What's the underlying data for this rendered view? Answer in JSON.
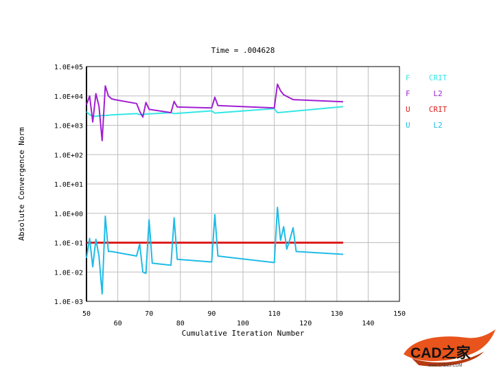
{
  "chart_data": {
    "type": "line",
    "title": "Time = .004628",
    "xlabel": "Cumulative Iteration Number",
    "ylabel": "Absolute Convergence Norm",
    "xlim": [
      50,
      150
    ],
    "ylim_log10": [
      -3,
      5
    ],
    "yscale": "log",
    "grid": true,
    "legend_position": "right",
    "x_ticks": [
      50,
      60,
      70,
      80,
      90,
      100,
      110,
      120,
      130,
      140,
      150
    ],
    "y_tick_labels": [
      "1.0E+05",
      "1.0E+04",
      "1.0E+03",
      "1.0E+02",
      "1.0E+01",
      "1.0E+00",
      "1.0E-01",
      "1.0E-02",
      "1.0E-03"
    ],
    "y_tick_values": [
      100000.0,
      10000.0,
      1000.0,
      100.0,
      10.0,
      1.0,
      0.1,
      0.01,
      0.001
    ],
    "legend": [
      {
        "left": "F",
        "right": "CRIT",
        "color": "#33e6e6"
      },
      {
        "left": "F",
        "right": "L2",
        "color": "#a01ed2"
      },
      {
        "left": "U",
        "right": "CRIT",
        "color": "#dd1e1e"
      },
      {
        "left": "U",
        "right": "L2",
        "color": "#1ebbe6"
      }
    ],
    "series": [
      {
        "name": "F CRIT",
        "color": "#33e6e6",
        "x": [
          50,
          51,
          52,
          53,
          54,
          55,
          56,
          57,
          58,
          66,
          67,
          68,
          69,
          70,
          77,
          78,
          79,
          90,
          91,
          92,
          110,
          111,
          112,
          132
        ],
        "y": [
          2900,
          2300,
          2000,
          2050,
          2100,
          2150,
          2150,
          2200,
          2250,
          2500,
          2300,
          2350,
          2400,
          2450,
          2700,
          2500,
          2550,
          3100,
          2600,
          2650,
          3700,
          2700,
          2750,
          4300
        ]
      },
      {
        "name": "F L2",
        "color": "#a01ed2",
        "x": [
          50,
          51,
          52,
          53,
          54,
          55,
          56,
          57,
          58,
          59,
          66,
          67,
          68,
          69,
          70,
          77,
          78,
          79,
          90,
          91,
          92,
          110,
          111,
          112,
          113,
          116,
          132
        ],
        "y": [
          5000,
          10000,
          1300,
          12000,
          4500,
          300,
          22000,
          10000,
          8000,
          7500,
          5500,
          3000,
          1900,
          6000,
          3500,
          2700,
          6500,
          4200,
          3900,
          9000,
          4700,
          3900,
          25000,
          15000,
          11000,
          7500,
          6300
        ]
      },
      {
        "name": "U CRIT",
        "color": "#dd1e1e",
        "x": [
          50,
          132
        ],
        "y": [
          0.1,
          0.1
        ]
      },
      {
        "name": "U L2",
        "color": "#1ebbe6",
        "x": [
          50,
          51,
          52,
          53,
          54,
          55,
          56,
          57,
          58,
          66,
          67,
          68,
          69,
          70,
          71,
          77,
          78,
          79,
          90,
          91,
          92,
          110,
          111,
          112,
          113,
          114,
          115,
          116,
          117,
          132
        ],
        "y": [
          0.03,
          0.14,
          0.015,
          0.13,
          0.035,
          0.0018,
          0.8,
          0.05,
          0.05,
          0.035,
          0.09,
          0.01,
          0.009,
          0.6,
          0.02,
          0.017,
          0.7,
          0.027,
          0.022,
          0.9,
          0.035,
          0.021,
          1.6,
          0.12,
          0.35,
          0.06,
          0.13,
          0.32,
          0.05,
          0.04
        ]
      }
    ]
  },
  "watermark": {
    "logo_text": "CAD之家",
    "url": "www.CADZJ.COM"
  }
}
